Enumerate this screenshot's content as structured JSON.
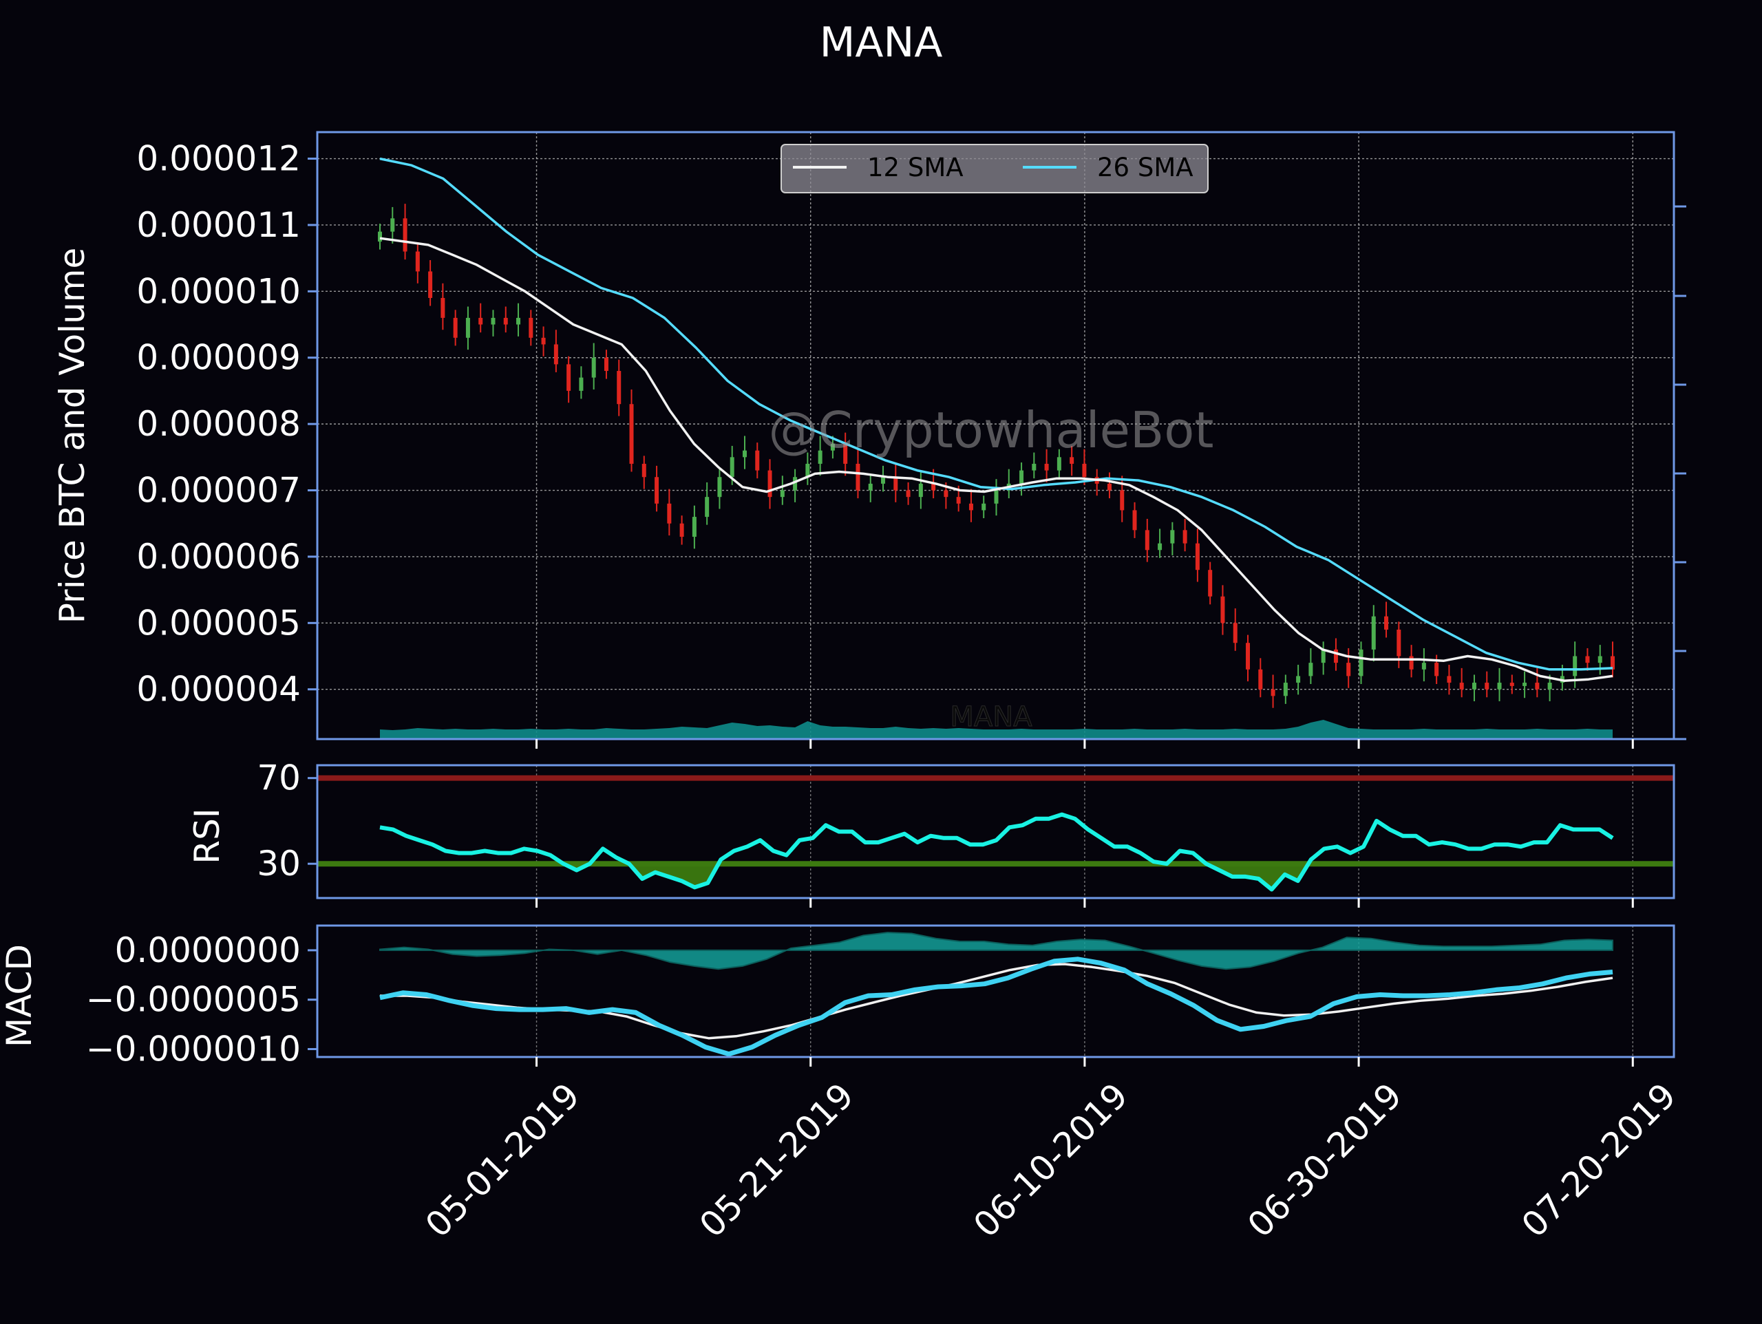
{
  "colors": {
    "background": "#05040c",
    "frame": "#6f98e6",
    "grid": "#bdbdbd",
    "up_candle": "#4caf50",
    "down_candle": "#e0251e",
    "sma12": "#f2f2f2",
    "sma26": "#55dcff",
    "volume": "#0e8c89",
    "rsi_line": "#19f2e3",
    "rsi_upper": "#8b1a1a",
    "rsi_lower": "#3c7a10",
    "rsi_fill": "#3c7a10",
    "macd_line": "#3fd2f2",
    "macd_signal": "#f0f0f0",
    "macd_hist": "#14a09a"
  },
  "chart_data": {
    "title": "MANA",
    "watermark": "@CryptowhaleBot",
    "volume_label": "MANA",
    "x_dates": [
      "05-01-2019",
      "05-21-2019",
      "06-10-2019",
      "06-30-2019",
      "07-20-2019"
    ],
    "x_start": "04-15-2019",
    "x_end": "07-23-2019",
    "price_panel": {
      "type": "candlestick",
      "ylabel": "Price BTC and Volume",
      "yticks": [
        "0.000004",
        "0.000005",
        "0.000006",
        "0.000007",
        "0.000008",
        "0.000009",
        "0.000010",
        "0.000011",
        "0.000012"
      ],
      "ylim": [
        3.25e-06,
        1.24e-05
      ],
      "legend": [
        "12 SMA",
        "26 SMA"
      ],
      "legend_position": "top-center",
      "closes_e6": [
        10.9,
        11.1,
        10.6,
        10.3,
        9.9,
        9.6,
        9.3,
        9.6,
        9.5,
        9.6,
        9.5,
        9.6,
        9.3,
        9.2,
        8.9,
        8.5,
        8.7,
        9.0,
        8.8,
        8.3,
        7.4,
        7.2,
        6.8,
        6.5,
        6.3,
        6.6,
        6.9,
        7.2,
        7.5,
        7.6,
        7.3,
        6.9,
        7.0,
        7.2,
        7.4,
        7.6,
        7.7,
        7.4,
        7.0,
        7.1,
        7.2,
        7.0,
        6.9,
        7.1,
        7.0,
        6.9,
        6.8,
        6.7,
        6.8,
        7.0,
        7.1,
        7.3,
        7.4,
        7.3,
        7.5,
        7.4,
        7.2,
        7.1,
        7.0,
        6.7,
        6.4,
        6.1,
        6.2,
        6.4,
        6.2,
        5.8,
        5.4,
        5.0,
        4.7,
        4.3,
        4.0,
        3.9,
        4.1,
        4.2,
        4.4,
        4.6,
        4.4,
        4.2,
        4.6,
        5.1,
        4.9,
        4.5,
        4.3,
        4.4,
        4.2,
        4.1,
        4.0,
        4.1,
        4.0,
        4.1,
        4.05,
        4.1,
        4.0,
        4.1,
        4.2,
        4.5,
        4.4,
        4.5,
        4.3
      ],
      "sma12_e6": [
        10.8,
        10.75,
        10.7,
        10.55,
        10.4,
        10.2,
        10.0,
        9.75,
        9.5,
        9.35,
        9.2,
        8.8,
        8.2,
        7.7,
        7.35,
        7.05,
        6.98,
        7.1,
        7.25,
        7.28,
        7.25,
        7.2,
        7.18,
        7.1,
        7.0,
        6.98,
        7.05,
        7.12,
        7.18,
        7.18,
        7.15,
        7.08,
        6.9,
        6.7,
        6.4,
        6.0,
        5.6,
        5.2,
        4.85,
        4.6,
        4.5,
        4.45,
        4.45,
        4.45,
        4.43,
        4.5,
        4.45,
        4.35,
        4.2,
        4.13,
        4.15,
        4.2
      ],
      "sma26_e6": [
        12.0,
        11.9,
        11.7,
        11.3,
        10.9,
        10.55,
        10.3,
        10.05,
        9.9,
        9.6,
        9.15,
        8.65,
        8.3,
        8.05,
        7.85,
        7.65,
        7.45,
        7.3,
        7.2,
        7.05,
        7.02,
        7.08,
        7.12,
        7.18,
        7.15,
        7.05,
        6.9,
        6.7,
        6.45,
        6.15,
        5.95,
        5.65,
        5.35,
        5.05,
        4.8,
        4.55,
        4.4,
        4.3,
        4.3,
        4.32
      ],
      "volume_relative": [
        0.3,
        0.25,
        0.3,
        0.4,
        0.35,
        0.3,
        0.35,
        0.3,
        0.3,
        0.35,
        0.3,
        0.3,
        0.35,
        0.3,
        0.3,
        0.35,
        0.3,
        0.3,
        0.4,
        0.35,
        0.3,
        0.3,
        0.35,
        0.4,
        0.5,
        0.45,
        0.4,
        0.6,
        0.8,
        0.7,
        0.55,
        0.6,
        0.5,
        0.45,
        0.9,
        0.6,
        0.5,
        0.5,
        0.45,
        0.4,
        0.4,
        0.5,
        0.4,
        0.35,
        0.4,
        0.35,
        0.4,
        0.35,
        0.3,
        0.3,
        0.3,
        0.35,
        0.3,
        0.3,
        0.3,
        0.3,
        0.35,
        0.3,
        0.3,
        0.3,
        0.35,
        0.3,
        0.3,
        0.3,
        0.35,
        0.3,
        0.3,
        0.3,
        0.35,
        0.3,
        0.3,
        0.3,
        0.35,
        0.5,
        0.8,
        1.0,
        0.7,
        0.4,
        0.35,
        0.3,
        0.3,
        0.3,
        0.3,
        0.35,
        0.3,
        0.3,
        0.3,
        0.3,
        0.35,
        0.3,
        0.3,
        0.3,
        0.35,
        0.3,
        0.3,
        0.3,
        0.35,
        0.3,
        0.3
      ]
    },
    "rsi_panel": {
      "ylabel": "RSI",
      "yticks": [
        "30",
        "70"
      ],
      "ylim": [
        14,
        76
      ],
      "upper": 70,
      "lower": 30,
      "values": [
        47,
        46,
        43,
        41,
        39,
        36,
        35,
        35,
        36,
        35,
        35,
        37,
        36,
        34,
        30,
        27,
        30,
        37,
        33,
        30,
        23,
        26,
        24,
        22,
        19,
        21,
        32,
        36,
        38,
        41,
        36,
        34,
        41,
        42,
        48,
        45,
        45,
        40,
        40,
        42,
        44,
        40,
        43,
        42,
        42,
        39,
        39,
        41,
        47,
        48,
        51,
        51,
        53,
        51,
        46,
        42,
        38,
        38,
        35,
        31,
        30,
        36,
        35,
        30,
        27,
        24,
        24,
        23,
        18,
        25,
        22,
        32,
        37,
        38,
        35,
        38,
        50,
        46,
        43,
        43,
        39,
        40,
        39,
        37,
        37,
        39,
        39,
        38,
        40,
        40,
        48,
        46,
        46,
        46,
        42
      ]
    },
    "macd_panel": {
      "ylabel": "MACD",
      "yticks": [
        "0.0000000",
        "−0.0000005",
        "−0.0000010"
      ],
      "ylim": [
        -1.08e-06,
        2.5e-07
      ],
      "macd_e7": [
        -4.8,
        -4.3,
        -4.5,
        -5.1,
        -5.6,
        -5.9,
        -6.0,
        -6.0,
        -5.9,
        -6.3,
        -6.0,
        -6.3,
        -7.6,
        -8.6,
        -9.8,
        -10.5,
        -9.8,
        -8.6,
        -7.6,
        -6.8,
        -5.3,
        -4.6,
        -4.5,
        -4.0,
        -3.7,
        -3.6,
        -3.4,
        -2.8,
        -1.9,
        -1.1,
        -0.9,
        -1.3,
        -2.0,
        -3.4,
        -4.4,
        -5.6,
        -7.1,
        -8.0,
        -7.7,
        -7.1,
        -6.7,
        -5.4,
        -4.7,
        -4.5,
        -4.6,
        -4.6,
        -4.5,
        -4.3,
        -4.0,
        -3.8,
        -3.4,
        -2.8,
        -2.4,
        -2.2
      ],
      "signal_e7": [
        -4.6,
        -4.6,
        -4.8,
        -5.2,
        -5.5,
        -5.8,
        -6.0,
        -6.1,
        -6.2,
        -6.7,
        -7.6,
        -8.4,
        -8.9,
        -8.7,
        -8.2,
        -7.6,
        -6.8,
        -6.0,
        -5.3,
        -4.6,
        -4.0,
        -3.4,
        -2.7,
        -2.0,
        -1.5,
        -1.4,
        -1.7,
        -2.1,
        -2.6,
        -3.3,
        -4.4,
        -5.5,
        -6.3,
        -6.6,
        -6.5,
        -6.2,
        -5.8,
        -5.4,
        -5.1,
        -4.9,
        -4.6,
        -4.4,
        -4.1,
        -3.7,
        -3.2,
        -2.8
      ],
      "hist_e7": [
        0.1,
        0.3,
        0.1,
        -0.4,
        -0.6,
        -0.5,
        -0.3,
        0.1,
        0.0,
        -0.4,
        0.0,
        -0.5,
        -1.2,
        -1.6,
        -1.9,
        -1.6,
        -0.9,
        0.2,
        0.5,
        0.8,
        1.5,
        1.8,
        1.7,
        1.2,
        0.9,
        0.9,
        0.6,
        0.5,
        0.9,
        1.1,
        1.0,
        0.4,
        -0.3,
        -1.0,
        -1.6,
        -1.9,
        -1.7,
        -1.1,
        -0.3,
        0.3,
        1.3,
        1.2,
        0.8,
        0.5,
        0.4,
        0.4,
        0.4,
        0.5,
        0.6,
        1.0,
        1.1,
        1.0
      ]
    }
  }
}
